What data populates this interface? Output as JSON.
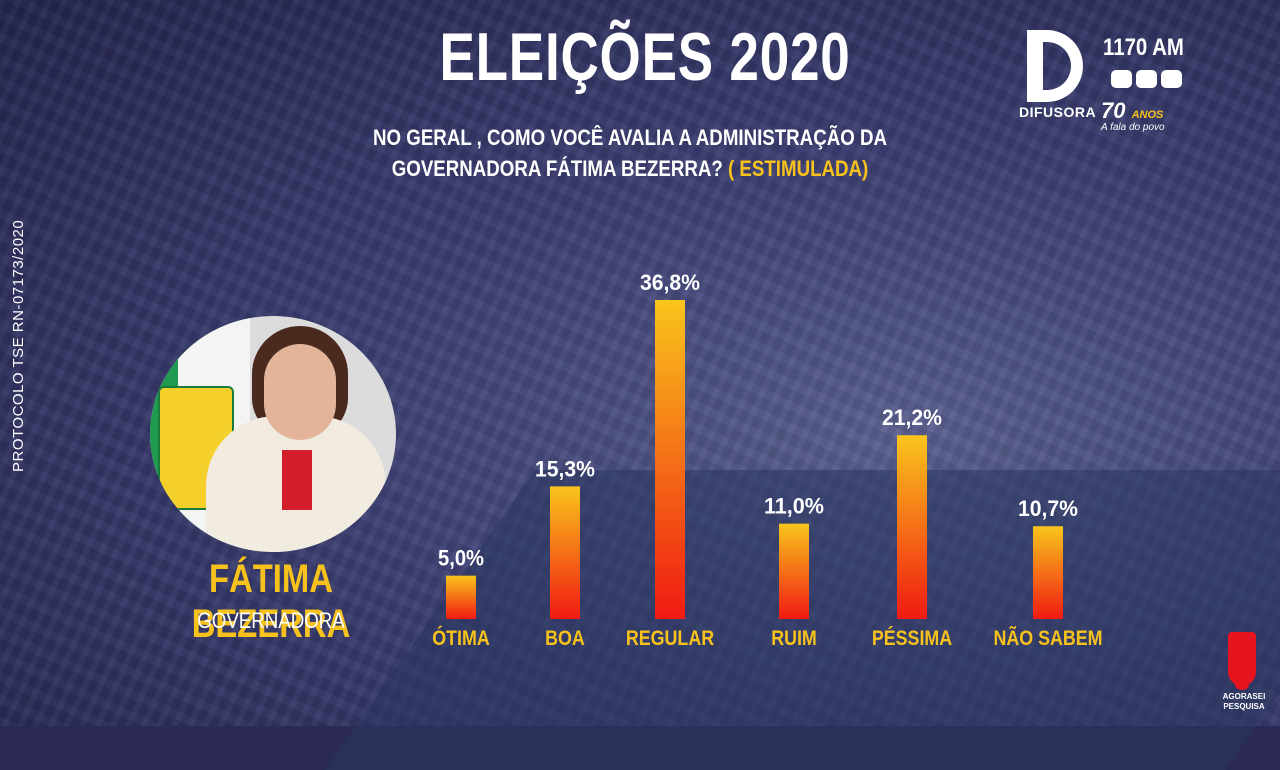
{
  "header": {
    "title": "ELEIÇÕES 2020",
    "question_line1": "NO GERAL , COMO VOCÊ AVALIA A ADMINISTRAÇÃO DA",
    "question_line2": "GOVERNADORA FÁTIMA BEZERRA?",
    "question_tag": "( ESTIMULADA)"
  },
  "protocol": "PROTOCOLO TSE RN-07173/2020",
  "candidate": {
    "name": "FÁTIMA BEZERRA",
    "role": "GOVERNADORA"
  },
  "station": {
    "brand": "DIFUSORA",
    "frequency": "1170 AM",
    "anniversary": "70",
    "anniversary_word": "ANOS",
    "motto": "A fala do povo"
  },
  "pollster": {
    "name": "AGORASEI",
    "subtitle": "PESQUISA"
  },
  "colors": {
    "accent_yellow": "#f7c21b",
    "bar_top": "#f9c51c",
    "bar_bottom": "#f01a12"
  },
  "chart_data": {
    "type": "bar",
    "categories": [
      "ÓTIMA",
      "BOA",
      "REGULAR",
      "RUIM",
      "PÉSSIMA",
      "NÃO SABEM"
    ],
    "values": [
      5.0,
      15.3,
      36.8,
      11.0,
      21.2,
      10.7
    ],
    "value_labels": [
      "5,0%",
      "15,3%",
      "36,8%",
      "11,0%",
      "21,2%",
      "10,7%"
    ],
    "unit": "%",
    "ylim": [
      0,
      36.8
    ],
    "grid": false,
    "legend": "none"
  }
}
